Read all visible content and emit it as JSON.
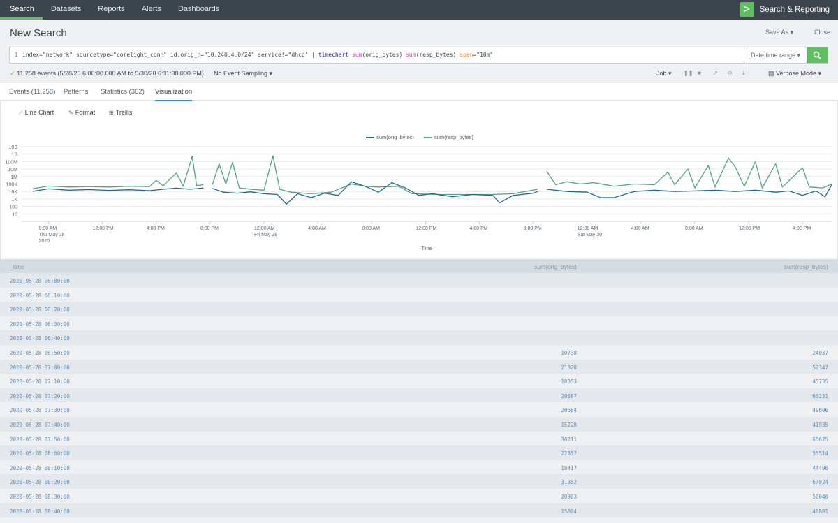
{
  "nav": {
    "items": [
      "Search",
      "Datasets",
      "Reports",
      "Alerts",
      "Dashboards"
    ],
    "active": "Search",
    "app_name": "Search & Reporting",
    "logo_glyph": ">"
  },
  "header": {
    "title": "New Search",
    "save_as": "Save As ▾",
    "close": "Close"
  },
  "search": {
    "line_number": "1",
    "query_parts": {
      "p1": "index=\"network\" sourcetype=\"corelight_conn\" id.orig_h=\"10.240.4.0/24\" service!=\"dhcp\" | ",
      "cmd": "timechart",
      "fn1": "sum",
      "a1": "(orig_bytes) ",
      "fn2": "sum",
      "a2": "(resp_bytes) ",
      "arg": "span",
      "a3": "=\"10m\""
    },
    "date_range": "Date time range ▾",
    "button_icon": "search-icon"
  },
  "status": {
    "check": "✓",
    "events": "11,258 events (5/28/20 6:00:00.000 AM to 5/30/20 6:11:38.000 PM)",
    "sampling": "No Event Sampling ▾",
    "job": "Job ▾",
    "mode": "▤ Verbose Mode ▾"
  },
  "tabs": [
    {
      "label": "Events (11,258)"
    },
    {
      "label": "Patterns"
    },
    {
      "label": "Statistics (362)"
    },
    {
      "label": "Visualization"
    }
  ],
  "viz_tools": {
    "line_chart": "Line Chart",
    "format": "Format",
    "trellis": "Trellis"
  },
  "colors": {
    "orig": "#1f6b8e",
    "resp": "#4fa484",
    "accent": "#5cc05c"
  },
  "chart_data": {
    "type": "line",
    "xlabel": "Time",
    "y_scale": "log",
    "y_ticks": [
      "10B",
      "1B",
      "100M",
      "10M",
      "1M",
      "100K",
      "10K",
      "1K",
      "100",
      "10"
    ],
    "x_ticks": [
      {
        "label": "8:00 AM",
        "sub": "Thu May 28",
        "sub2": "2020"
      },
      {
        "label": "12:00 PM",
        "sub": "",
        "sub2": ""
      },
      {
        "label": "4:00 PM",
        "sub": "",
        "sub2": ""
      },
      {
        "label": "8:00 PM",
        "sub": "",
        "sub2": ""
      },
      {
        "label": "12:00 AM",
        "sub": "Fri May 29",
        "sub2": ""
      },
      {
        "label": "4:00 AM",
        "sub": "",
        "sub2": ""
      },
      {
        "label": "8:00 AM",
        "sub": "",
        "sub2": ""
      },
      {
        "label": "12:00 PM",
        "sub": "",
        "sub2": ""
      },
      {
        "label": "4:00 PM",
        "sub": "",
        "sub2": ""
      },
      {
        "label": "8:00 PM",
        "sub": "",
        "sub2": ""
      },
      {
        "label": "12:00 AM",
        "sub": "Sat May 30",
        "sub2": ""
      },
      {
        "label": "4:00 AM",
        "sub": "",
        "sub2": ""
      },
      {
        "label": "8:00 AM",
        "sub": "",
        "sub2": ""
      },
      {
        "label": "12:00 PM",
        "sub": "",
        "sub2": ""
      },
      {
        "label": "4:00 PM",
        "sub": "",
        "sub2": ""
      }
    ],
    "x_start": "2020-05-28 06:00",
    "x_end": "2020-05-30 18:10",
    "legend_position": "top",
    "grid": true,
    "series": [
      {
        "name": "sum(orig_bytes)",
        "key": "orig",
        "segments": [
          [
            [
              "2020-05-28 06:50",
              10738
            ],
            [
              "2020-05-28 08:00",
              22857
            ],
            [
              "2020-05-28 09:30",
              15000
            ],
            [
              "2020-05-28 11:00",
              18000
            ],
            [
              "2020-05-28 12:30",
              14000
            ],
            [
              "2020-05-28 14:00",
              17000
            ],
            [
              "2020-05-28 15:30",
              13000
            ],
            [
              "2020-05-28 16:30",
              20000
            ],
            [
              "2020-05-28 17:30",
              28000
            ],
            [
              "2020-05-28 18:30",
              20000
            ],
            [
              "2020-05-28 19:30",
              30000
            ]
          ],
          [
            [
              "2020-05-28 20:10",
              25000
            ],
            [
              "2020-05-28 21:00",
              8000
            ],
            [
              "2020-05-28 22:00",
              6000
            ],
            [
              "2020-05-28 23:00",
              9000
            ],
            [
              "2020-05-29 00:00",
              5000
            ],
            [
              "2020-05-29 01:00",
              4000
            ],
            [
              "2020-05-29 01:40",
              200
            ],
            [
              "2020-05-29 02:30",
              5000
            ],
            [
              "2020-05-29 03:30",
              1500
            ],
            [
              "2020-05-29 04:30",
              6000
            ],
            [
              "2020-05-29 05:30",
              3000
            ],
            [
              "2020-05-29 06:30",
              200000
            ],
            [
              "2020-05-29 07:30",
              50000
            ],
            [
              "2020-05-29 08:30",
              8000
            ],
            [
              "2020-05-29 09:30",
              150000
            ],
            [
              "2020-05-29 10:30",
              30000
            ],
            [
              "2020-05-29 11:30",
              3000
            ],
            [
              "2020-05-29 12:30",
              5000
            ],
            [
              "2020-05-29 14:00",
              2000
            ],
            [
              "2020-05-29 15:30",
              4000
            ],
            [
              "2020-05-29 17:00",
              3000
            ],
            [
              "2020-05-29 17:30",
              300
            ],
            [
              "2020-05-29 18:30",
              3000
            ],
            [
              "2020-05-29 20:00",
              6000
            ],
            [
              "2020-05-29 20:20",
              10000
            ]
          ],
          [
            [
              "2020-05-29 21:00",
              20000
            ],
            [
              "2020-05-29 22:30",
              10000
            ],
            [
              "2020-05-30 00:00",
              8000
            ],
            [
              "2020-05-30 01:00",
              1500
            ],
            [
              "2020-05-30 02:00",
              1500
            ],
            [
              "2020-05-30 03:30",
              10000
            ],
            [
              "2020-05-30 05:00",
              15000
            ],
            [
              "2020-05-30 06:30",
              10000
            ],
            [
              "2020-05-30 08:00",
              12000
            ],
            [
              "2020-05-30 09:30",
              15000
            ],
            [
              "2020-05-30 11:00",
              10000
            ],
            [
              "2020-05-30 12:30",
              15000
            ],
            [
              "2020-05-30 14:00",
              8000
            ],
            [
              "2020-05-30 15:00",
              12000
            ],
            [
              "2020-05-30 16:00",
              3000
            ],
            [
              "2020-05-30 17:00",
              12000
            ],
            [
              "2020-05-30 17:40",
              2000
            ],
            [
              "2020-05-30 18:10",
              80000
            ]
          ]
        ]
      },
      {
        "name": "sum(resp_bytes)",
        "key": "resp",
        "segments": [
          [
            [
              "2020-05-28 06:50",
              24037
            ],
            [
              "2020-05-28 08:00",
              53514
            ],
            [
              "2020-05-28 09:30",
              40000
            ],
            [
              "2020-05-28 11:00",
              45000
            ],
            [
              "2020-05-28 12:30",
              40000
            ],
            [
              "2020-05-28 14:00",
              50000
            ],
            [
              "2020-05-28 15:30",
              45000
            ],
            [
              "2020-05-28 16:00",
              300000
            ],
            [
              "2020-05-28 16:30",
              60000
            ],
            [
              "2020-05-28 17:30",
              3000000
            ],
            [
              "2020-05-28 18:00",
              50000
            ],
            [
              "2020-05-28 18:40",
              500000000
            ],
            [
              "2020-05-28 19:00",
              60000
            ],
            [
              "2020-05-28 19:30",
              80000
            ]
          ],
          [
            [
              "2020-05-28 20:10",
              80000
            ],
            [
              "2020-05-28 20:40",
              50000000
            ],
            [
              "2020-05-28 21:10",
              100000
            ],
            [
              "2020-05-28 21:40",
              80000000
            ],
            [
              "2020-05-28 22:10",
              30000
            ],
            [
              "2020-05-28 23:00",
              20000
            ],
            [
              "2020-05-29 00:00",
              15000
            ],
            [
              "2020-05-29 00:40",
              600000000
            ],
            [
              "2020-05-29 01:10",
              20000
            ],
            [
              "2020-05-29 02:00",
              8000
            ],
            [
              "2020-05-29 03:30",
              5000
            ],
            [
              "2020-05-29 05:00",
              8000
            ],
            [
              "2020-05-29 06:30",
              100000
            ],
            [
              "2020-05-29 07:30",
              50000
            ],
            [
              "2020-05-29 08:30",
              40000
            ],
            [
              "2020-05-29 10:00",
              50000
            ],
            [
              "2020-05-29 11:00",
              5000
            ],
            [
              "2020-05-29 13:00",
              4000
            ],
            [
              "2020-05-29 15:00",
              4000
            ],
            [
              "2020-05-29 17:00",
              4000
            ],
            [
              "2020-05-29 18:30",
              5000
            ],
            [
              "2020-05-29 20:20",
              20000
            ]
          ],
          [
            [
              "2020-05-29 21:00",
              5000000
            ],
            [
              "2020-05-29 21:40",
              80000
            ],
            [
              "2020-05-29 22:30",
              200000
            ],
            [
              "2020-05-29 23:30",
              100000
            ],
            [
              "2020-05-30 00:30",
              150000
            ],
            [
              "2020-05-30 02:00",
              50000
            ],
            [
              "2020-05-30 03:30",
              100000
            ],
            [
              "2020-05-30 05:00",
              80000
            ],
            [
              "2020-05-30 06:00",
              4000000
            ],
            [
              "2020-05-30 06:30",
              80000
            ],
            [
              "2020-05-30 07:30",
              10000000
            ],
            [
              "2020-05-30 08:00",
              30000
            ],
            [
              "2020-05-30 09:00",
              30000000
            ],
            [
              "2020-05-30 09:30",
              40000
            ],
            [
              "2020-05-30 10:30",
              300000000
            ],
            [
              "2020-05-30 11:00",
              20000000
            ],
            [
              "2020-05-30 11:40",
              50000
            ],
            [
              "2020-05-30 12:30",
              100000000
            ],
            [
              "2020-05-30 13:00",
              30000
            ],
            [
              "2020-05-30 14:00",
              50000000
            ],
            [
              "2020-05-30 14:30",
              40000
            ],
            [
              "2020-05-30 16:00",
              15000000
            ],
            [
              "2020-05-30 16:30",
              40000
            ],
            [
              "2020-05-30 17:30",
              30000
            ],
            [
              "2020-05-30 18:10",
              100000
            ]
          ]
        ]
      }
    ]
  },
  "table": {
    "headers": [
      "_time",
      "sum(orig_bytes)",
      "sum(resp_bytes)"
    ],
    "rows": [
      [
        "2020-05-28 06:00:00",
        "",
        ""
      ],
      [
        "2020-05-28 06:10:00",
        "",
        ""
      ],
      [
        "2020-05-28 06:20:00",
        "",
        ""
      ],
      [
        "2020-05-28 06:30:00",
        "",
        ""
      ],
      [
        "2020-05-28 06:40:00",
        "",
        ""
      ],
      [
        "2020-05-28 06:50:00",
        "10738",
        "24037"
      ],
      [
        "2020-05-28 07:00:00",
        "21828",
        "52347"
      ],
      [
        "2020-05-28 07:10:00",
        "18353",
        "45735"
      ],
      [
        "2020-05-28 07:20:00",
        "29887",
        "65231"
      ],
      [
        "2020-05-28 07:30:00",
        "20684",
        "49696"
      ],
      [
        "2020-05-28 07:40:00",
        "15228",
        "41935"
      ],
      [
        "2020-05-28 07:50:00",
        "30211",
        "65675"
      ],
      [
        "2020-05-28 08:00:00",
        "22857",
        "53514"
      ],
      [
        "2020-05-28 08:10:00",
        "18417",
        "44496"
      ],
      [
        "2020-05-28 08:20:00",
        "31852",
        "67824"
      ],
      [
        "2020-05-28 08:30:00",
        "20903",
        "50040"
      ],
      [
        "2020-05-28 08:40:00",
        "15004",
        "40861"
      ]
    ]
  }
}
